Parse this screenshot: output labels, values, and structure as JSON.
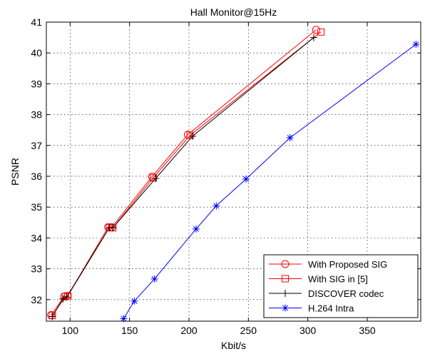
{
  "chart_data": {
    "type": "line",
    "title": "Hall Monitor@15Hz",
    "xlabel": "Kbit/s",
    "ylabel": "PSNR",
    "xlim": [
      80,
      395
    ],
    "ylim": [
      31.3,
      41
    ],
    "xticks": [
      100,
      150,
      200,
      250,
      300,
      350
    ],
    "yticks": [
      32,
      33,
      34,
      35,
      36,
      37,
      38,
      39,
      40,
      41
    ],
    "grid": true,
    "legend_position": "bottom-right",
    "series": [
      {
        "name": "With Proposed SIG",
        "color": "#ff0000",
        "marker": "circle",
        "points": [
          [
            84,
            31.5
          ],
          [
            95,
            32.1
          ],
          [
            98,
            32.12
          ],
          [
            132,
            34.35
          ],
          [
            135,
            34.35
          ],
          [
            169,
            35.99
          ],
          [
            199,
            37.35
          ],
          [
            307,
            40.75
          ]
        ]
      },
      {
        "name": "With SIG in [5]",
        "color": "#ff0000",
        "marker": "square",
        "points": [
          [
            85,
            31.48
          ],
          [
            96,
            32.1
          ],
          [
            98,
            32.12
          ],
          [
            133,
            34.33
          ],
          [
            136,
            34.33
          ],
          [
            170,
            35.95
          ],
          [
            201,
            37.33
          ],
          [
            311,
            40.68
          ]
        ]
      },
      {
        "name": "DISCOVER codec",
        "color": "#000000",
        "marker": "plus",
        "points": [
          [
            85,
            31.45
          ],
          [
            94,
            32.02
          ],
          [
            97,
            32.08
          ],
          [
            133,
            34.33
          ],
          [
            136,
            34.33
          ],
          [
            172,
            35.93
          ],
          [
            203,
            37.3
          ],
          [
            305,
            40.5
          ]
        ]
      },
      {
        "name": "H.264 Intra",
        "color": "#0000ff",
        "marker": "star",
        "points": [
          [
            145,
            31.38
          ],
          [
            154,
            31.95
          ],
          [
            171,
            32.67
          ],
          [
            206,
            34.29
          ],
          [
            223,
            35.04
          ],
          [
            248,
            35.91
          ],
          [
            285,
            37.25
          ],
          [
            391,
            40.28
          ]
        ]
      }
    ]
  }
}
